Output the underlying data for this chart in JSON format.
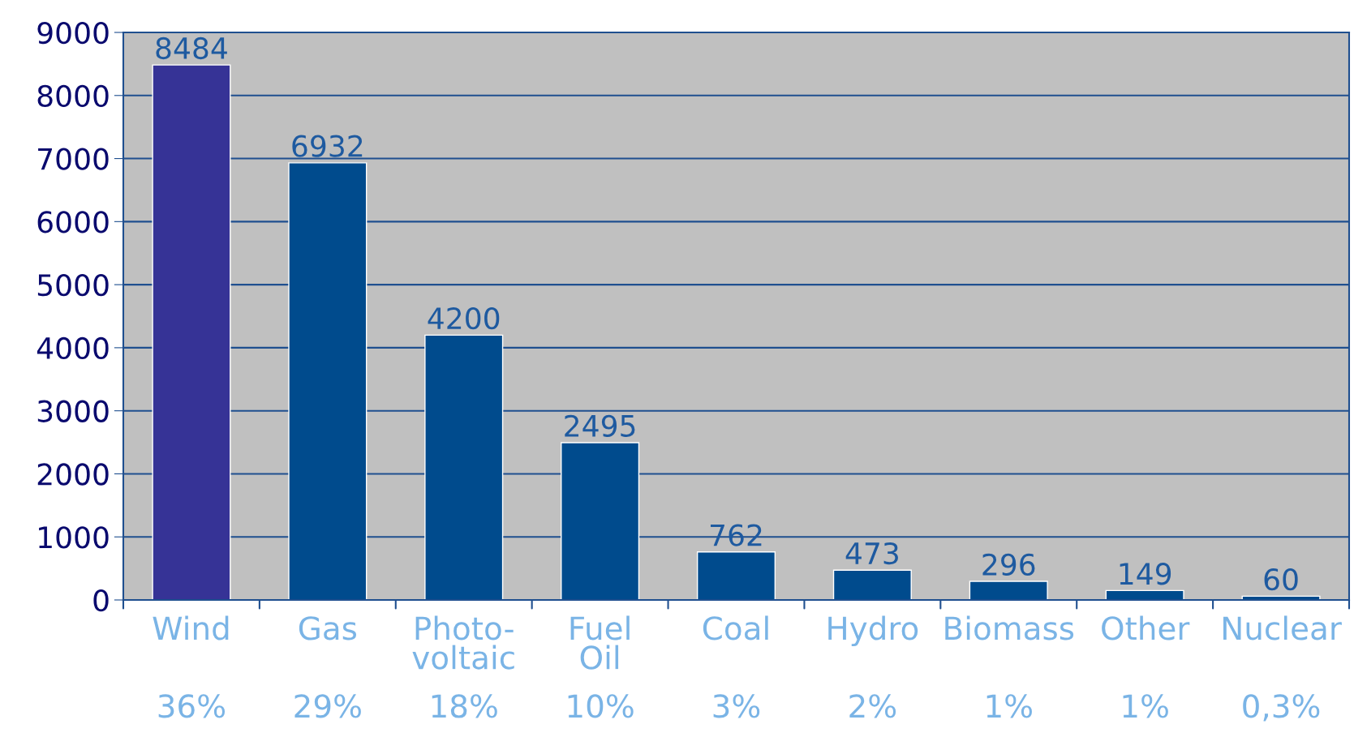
{
  "chart_data": {
    "type": "bar",
    "categories": [
      "Wind",
      "Gas",
      "Photo-\nvoltaic",
      "Fuel\nOil",
      "Coal",
      "Hydro",
      "Biomass",
      "Other",
      "Nuclear"
    ],
    "values": [
      8484,
      6932,
      4200,
      2495,
      762,
      473,
      296,
      149,
      60
    ],
    "colors": [
      "#363396",
      "#004b8d",
      "#004b8d",
      "#004b8d",
      "#004b8d",
      "#004b8d",
      "#004b8d",
      "#004b8d",
      "#004b8d"
    ],
    "data_labels": true,
    "annotations": [
      "36%",
      "29%",
      "18%",
      "10%",
      "3%",
      "2%",
      "1%",
      "1%",
      "0,3%"
    ],
    "ylim": [
      0,
      9000
    ],
    "yticks": [
      0,
      1000,
      2000,
      3000,
      4000,
      5000,
      6000,
      7000,
      8000,
      9000
    ],
    "grid": "y"
  }
}
